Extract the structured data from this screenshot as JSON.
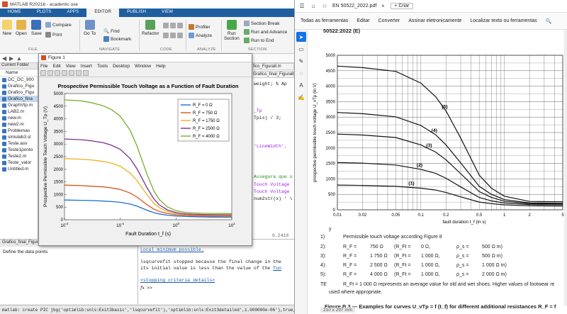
{
  "matlab": {
    "window_title": "MATLAB R2021b - academic use",
    "tabs": [
      "HOME",
      "PLOTS",
      "APPS",
      "EDITOR",
      "PUBLISH",
      "VIEW"
    ],
    "active_tab": "EDITOR",
    "ribbon": {
      "new": "New",
      "open": "Open",
      "save": "Save",
      "compare": "Compare",
      "print": "Print",
      "goto": "Go To",
      "find": "Find",
      "bookmark": "Bookmark",
      "refactor": "Refactor",
      "profiler": "Profiler",
      "analyze": "Analyze",
      "run_section": "Run\nSection",
      "section_break": "Section Break",
      "run_and_advance": "Run and Advance",
      "run_to_end": "Run to End",
      "groups": [
        "FILE",
        "NAVIGATE",
        "CODE",
        "ANALYZE",
        "SECTION"
      ]
    },
    "current_folder": {
      "header": "Current Folder",
      "col_name": "Name",
      "files": [
        "DC_DC_900",
        "Grafico_Figu",
        "Grafico_Figu",
        "Grafico_fina",
        "GraphVtp.m",
        "LAB2.m",
        "new.m",
        "new2.m",
        "Problemas",
        "simulab3.sl",
        "Teste.asv",
        "Teste1ponto",
        "Teste2.m",
        "Teste_valor",
        "Untitled.m"
      ],
      "selected_index": 3
    },
    "editor": {
      "tab_label": "Grafico_final_Figura8.m",
      "tab_label2": "fico_Figura8.m",
      "lines": [
        "weight;  % Ap",
        "_Tp",
        "Tpis) / 3;",
        "'LineWidth',",
        "Assegura que o",
        "Touch Voltage",
        "Touch Voltage",
        "num2str(x) ' \\"
      ],
      "value": "6.2410"
    },
    "details": {
      "header": "Grafico_final_Figura8.m (Script)",
      "body": "Define the data points"
    },
    "command_window": {
      "line1": "Local minimum possible.",
      "line2": "lsqcurvefit stopped because the final change in the",
      "line3": "its initial value is less than the value of the ",
      "line3_link": "fun",
      "line4": "<stopping criteria details>",
      "prompt": ">>"
    },
    "status_bar": "matlab: create PIC jbg('optimlib:snls:Exit3basic','lsqcurvefit'),'optimlib:snls:Exit3detailed',1.000000e-06'),true,true);"
  },
  "figure": {
    "window_title": "Figure 1",
    "menu": [
      "File",
      "Edit",
      "View",
      "Insert",
      "Tools",
      "Desktop",
      "Window",
      "Help"
    ],
    "chart_data": {
      "type": "line",
      "title": "Prospective Permissible Touch Voltage as a Function of Fault Duration",
      "xlabel": "Fault Duration t_f (s)",
      "ylabel": "Prospective Permissible Touch Voltage U_Tp (V)",
      "xscale": "log",
      "xlim": [
        0.01,
        10
      ],
      "ylim": [
        0,
        5000
      ],
      "yticks": [
        0,
        500,
        1000,
        1500,
        2000,
        2500,
        3000,
        3500,
        4000,
        4500,
        5000
      ],
      "xticks": [
        0.01,
        0.1,
        1,
        10
      ],
      "xtick_labels": [
        "10^-2",
        "10^-1",
        "10^0",
        "10^1"
      ],
      "legend_placement": "top-right",
      "x": [
        0.01,
        0.02,
        0.03,
        0.05,
        0.07,
        0.1,
        0.15,
        0.2,
        0.3,
        0.4,
        0.5,
        0.7,
        1,
        1.5,
        2,
        3,
        5,
        10
      ],
      "series": [
        {
          "name": "R_F = 0 Ω",
          "color": "#1f6fd1",
          "values": [
            780,
            770,
            760,
            740,
            720,
            690,
            620,
            540,
            380,
            280,
            230,
            180,
            150,
            130,
            120,
            110,
            105,
            100
          ]
        },
        {
          "name": "R_F = 750 Ω",
          "color": "#d95319",
          "values": [
            1370,
            1350,
            1330,
            1300,
            1260,
            1200,
            1060,
            900,
            600,
            420,
            330,
            250,
            200,
            170,
            160,
            150,
            145,
            140
          ]
        },
        {
          "name": "R_F = 1750 Ω",
          "color": "#edb120",
          "values": [
            2420,
            2400,
            2370,
            2310,
            2240,
            2120,
            1850,
            1550,
            1000,
            650,
            480,
            330,
            250,
            210,
            195,
            185,
            180,
            175
          ]
        },
        {
          "name": "R_F = 2500 Ω",
          "color": "#7e2f8e",
          "values": [
            3200,
            3170,
            3130,
            3050,
            2950,
            2790,
            2430,
            2020,
            1280,
            830,
            590,
            390,
            280,
            230,
            215,
            205,
            200,
            195
          ]
        },
        {
          "name": "R_F = 4000 Ω",
          "color": "#77ac30",
          "values": [
            4750,
            4710,
            4640,
            4510,
            4360,
            4100,
            3550,
            2920,
            1820,
            1150,
            800,
            510,
            360,
            290,
            270,
            255,
            250,
            245
          ]
        }
      ]
    }
  },
  "pdf": {
    "tab_title": "EN 50522_2022.pdf",
    "edit_label": "Editar",
    "create_label": "Criar",
    "toolbar": [
      "Todas as ferramentas",
      "Editar",
      "Converter",
      "Assinar eletronicamente",
      "Localizar texto ou ferramentas"
    ],
    "page_heading": "50522:2022 (E)",
    "chart_data": {
      "type": "line",
      "title": "",
      "xlabel": "fault duration t_f (in s)",
      "ylabel": "prospective permissible touch voltage U_vTp (in V)",
      "xscale": "log",
      "xlim": [
        0.01,
        5
      ],
      "ylim": [
        0,
        5000
      ],
      "yticks": [
        0,
        500,
        1000,
        1500,
        2000,
        2500,
        3000,
        3500,
        4000,
        4500,
        5000
      ],
      "xtick_labels": [
        "0.01",
        "0.02",
        "0.05",
        "0.1",
        "0.2",
        "0.5",
        "1",
        "2",
        "5"
      ],
      "xticks": [
        0.01,
        0.02,
        0.05,
        0.1,
        0.2,
        0.5,
        1,
        2,
        5
      ],
      "x": [
        0.01,
        0.02,
        0.05,
        0.1,
        0.15,
        0.2,
        0.3,
        0.5,
        0.7,
        1,
        2,
        5
      ],
      "series": [
        {
          "name": "(1)",
          "values": [
            800,
            790,
            760,
            700,
            640,
            560,
            420,
            250,
            200,
            160,
            130,
            120
          ]
        },
        {
          "name": "(2)",
          "values": [
            1530,
            1510,
            1450,
            1310,
            1180,
            1020,
            740,
            400,
            290,
            220,
            170,
            160
          ]
        },
        {
          "name": "(3)",
          "values": [
            2450,
            2420,
            2340,
            2100,
            1870,
            1620,
            1170,
            590,
            400,
            280,
            200,
            190
          ]
        },
        {
          "name": "(4)",
          "values": [
            3150,
            3110,
            3010,
            2730,
            2430,
            2100,
            1520,
            760,
            500,
            330,
            220,
            210
          ]
        },
        {
          "name": "(5)",
          "values": [
            4650,
            4600,
            4480,
            4100,
            3660,
            3200,
            2320,
            1120,
            700,
            440,
            270,
            260
          ]
        }
      ]
    },
    "text": {
      "key": "y",
      "key_1": "1)",
      "key_1_text": "Permissible touch voltage according Figure 8",
      "rows": [
        {
          "n": "2):",
          "rf": "R_F =",
          "v1": "750 Ω",
          "rft": "(R_Ft =",
          "v2": "0 Ω,",
          "rho": "ρ_s =",
          "v3": "500 Ω m)"
        },
        {
          "n": "3):",
          "rf": "R_F =",
          "v1": "1 750 Ω",
          "rft": "(R_Ft =",
          "v2": "1 000 Ω,",
          "rho": "ρ_s =",
          "v3": "500 Ω m)"
        },
        {
          "n": "4):",
          "rf": "R_F =",
          "v1": "2 500 Ω",
          "rft": "(R_Ft =",
          "v2": "1 000 Ω,",
          "rho": "ρ_s =",
          "v3": "1 000 Ω m)"
        },
        {
          "n": "5):",
          "rf": "R_F =",
          "v1": "4 000 Ω",
          "rft": "(R_Ft =",
          "v2": "1 000 Ω,",
          "rho": "ρ_s =",
          "v3": "2 000 Ω m)"
        }
      ],
      "note_a": "TE",
      "note_b": "R_Ft = 1 000 Ω represents an average value for old and wet shoes. Higher values of footwear re",
      "note_c": "used where appropriate.",
      "caption": "Figure B.3 — Examples for curves U_vTp = f (t_f) for different additional resistances R_F = f",
      "page_size": "210 x 297 mm"
    }
  }
}
